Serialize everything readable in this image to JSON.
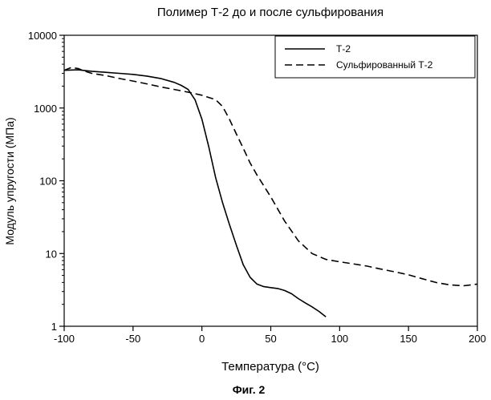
{
  "chart_data": {
    "type": "line",
    "title": "Полимер Т-2 до и после сульфирования",
    "xlabel": "Температура (°C)",
    "ylabel": "Модуль упругости (МПа)",
    "caption": "Фиг. 2",
    "xlim": [
      -100,
      200
    ],
    "ylim": [
      1,
      10000
    ],
    "yscale": "log",
    "grid": false,
    "legend_position": "top-right",
    "x_ticks": [
      -100,
      -50,
      0,
      50,
      100,
      150,
      200
    ],
    "x_tick_labels": [
      "-100",
      "-50",
      "0",
      "50",
      "100",
      "150",
      "200"
    ],
    "y_ticks": [
      1,
      10,
      100,
      1000,
      10000
    ],
    "y_tick_labels": [
      "1",
      "10",
      "100",
      "1000",
      "10000"
    ],
    "series": [
      {
        "name": "Т-2",
        "style": "solid",
        "x": [
          -100,
          -90,
          -80,
          -70,
          -60,
          -50,
          -40,
          -30,
          -20,
          -15,
          -10,
          -5,
          0,
          5,
          10,
          15,
          20,
          25,
          30,
          35,
          40,
          45,
          50,
          55,
          60,
          65,
          70,
          75,
          80,
          85,
          90
        ],
        "y": [
          3300,
          3350,
          3200,
          3100,
          3000,
          2900,
          2750,
          2550,
          2250,
          2050,
          1800,
          1300,
          700,
          290,
          110,
          50,
          25,
          13,
          7,
          4.7,
          3.8,
          3.5,
          3.4,
          3.3,
          3.1,
          2.8,
          2.4,
          2.1,
          1.85,
          1.6,
          1.35
        ]
      },
      {
        "name": "Сульфированный Т-2",
        "style": "dashed",
        "x": [
          -100,
          -95,
          -90,
          -85,
          -80,
          -70,
          -60,
          -50,
          -40,
          -30,
          -20,
          -10,
          0,
          10,
          15,
          20,
          25,
          30,
          35,
          40,
          50,
          60,
          70,
          80,
          90,
          100,
          110,
          120,
          130,
          140,
          150,
          160,
          170,
          180,
          190,
          200
        ],
        "y": [
          3300,
          3600,
          3500,
          3200,
          3000,
          2800,
          2550,
          2350,
          2150,
          1950,
          1800,
          1650,
          1500,
          1300,
          1050,
          700,
          440,
          280,
          175,
          120,
          60,
          28,
          15,
          10,
          8.3,
          7.7,
          7.2,
          6.7,
          6.1,
          5.6,
          5.1,
          4.5,
          4.0,
          3.7,
          3.6,
          3.8
        ]
      }
    ]
  }
}
